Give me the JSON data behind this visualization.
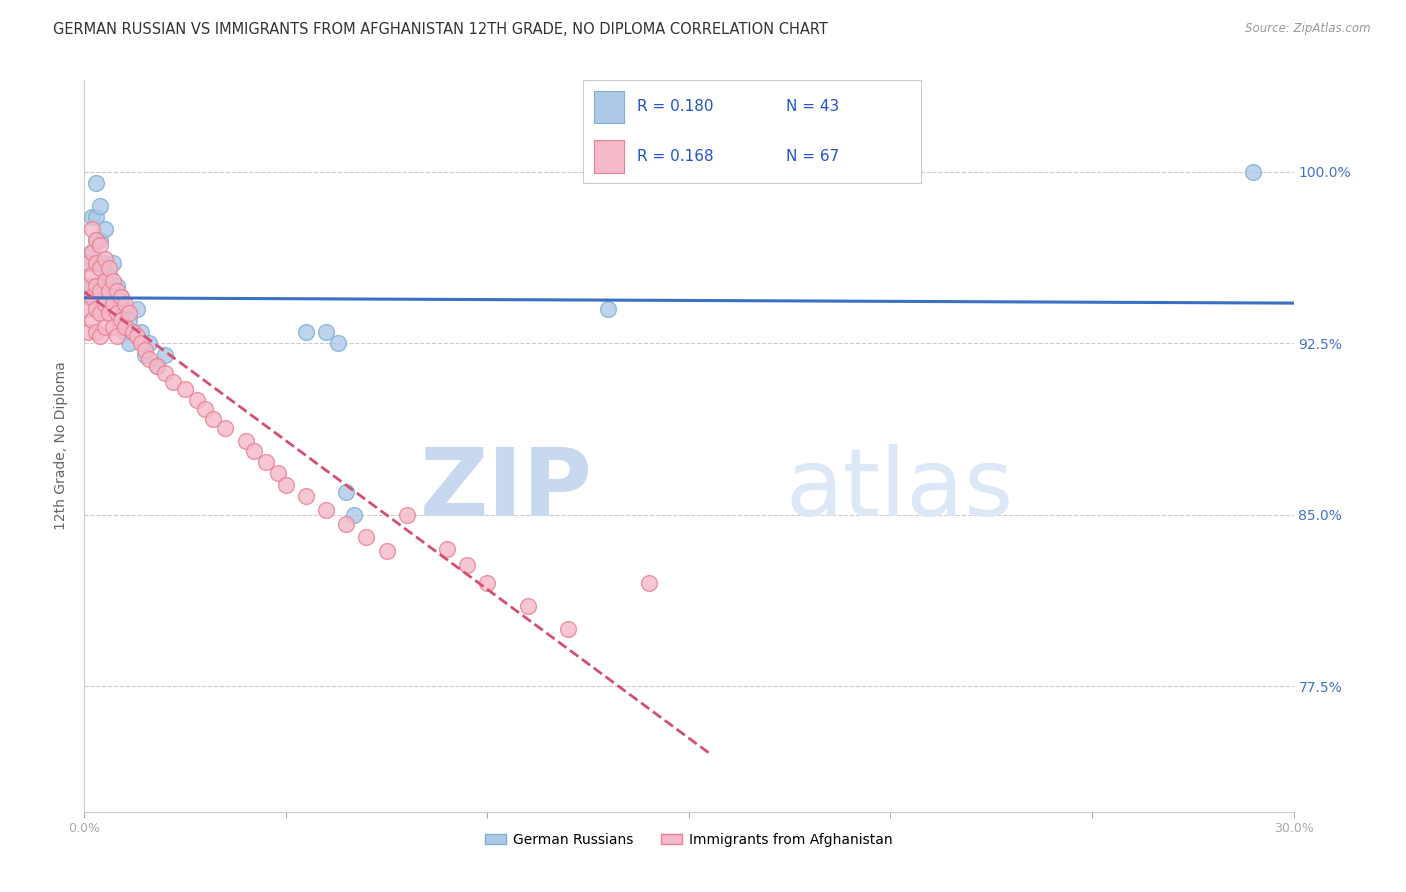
{
  "title": "GERMAN RUSSIAN VS IMMIGRANTS FROM AFGHANISTAN 12TH GRADE, NO DIPLOMA CORRELATION CHART",
  "source": "Source: ZipAtlas.com",
  "ylabel": "12th Grade, No Diploma",
  "y_ticks": [
    0.775,
    0.85,
    0.925,
    1.0
  ],
  "y_tick_labels": [
    "77.5%",
    "85.0%",
    "92.5%",
    "100.0%"
  ],
  "xlim": [
    0.0,
    0.3
  ],
  "ylim": [
    0.72,
    1.04
  ],
  "legend_label_blue": "German Russians",
  "legend_label_pink": "Immigrants from Afghanistan",
  "blue_color": "#aec8e8",
  "blue_edge": "#7aafd4",
  "pink_color": "#f5b8c8",
  "pink_edge": "#e88090",
  "blue_line_color": "#3a6fc4",
  "pink_line_color": "#d45070",
  "watermark_zip": "ZIP",
  "watermark_atlas": "atlas",
  "background_color": "#ffffff",
  "title_color": "#333333",
  "title_fontsize": 10.5,
  "tick_color_right": "#4472c4",
  "watermark_color": "#dde8f5",
  "blue_x": [
    0.001,
    0.001,
    0.002,
    0.002,
    0.002,
    0.003,
    0.003,
    0.003,
    0.003,
    0.004,
    0.004,
    0.004,
    0.004,
    0.005,
    0.005,
    0.005,
    0.006,
    0.006,
    0.007,
    0.007,
    0.007,
    0.008,
    0.008,
    0.009,
    0.009,
    0.01,
    0.01,
    0.011,
    0.011,
    0.012,
    0.013,
    0.014,
    0.015,
    0.016,
    0.018,
    0.02,
    0.055,
    0.06,
    0.063,
    0.065,
    0.067,
    0.13,
    0.29
  ],
  "blue_y": [
    0.96,
    0.945,
    0.98,
    0.965,
    0.95,
    0.995,
    0.98,
    0.97,
    0.96,
    0.985,
    0.97,
    0.96,
    0.95,
    0.975,
    0.96,
    0.95,
    0.955,
    0.945,
    0.96,
    0.95,
    0.94,
    0.95,
    0.94,
    0.945,
    0.935,
    0.94,
    0.93,
    0.935,
    0.925,
    0.93,
    0.94,
    0.93,
    0.92,
    0.925,
    0.915,
    0.92,
    0.93,
    0.93,
    0.925,
    0.86,
    0.85,
    0.94,
    1.0
  ],
  "pink_x": [
    0.001,
    0.001,
    0.001,
    0.001,
    0.002,
    0.002,
    0.002,
    0.002,
    0.002,
    0.003,
    0.003,
    0.003,
    0.003,
    0.003,
    0.004,
    0.004,
    0.004,
    0.004,
    0.004,
    0.005,
    0.005,
    0.005,
    0.005,
    0.006,
    0.006,
    0.006,
    0.007,
    0.007,
    0.007,
    0.008,
    0.008,
    0.008,
    0.009,
    0.009,
    0.01,
    0.01,
    0.011,
    0.012,
    0.013,
    0.014,
    0.015,
    0.016,
    0.018,
    0.02,
    0.022,
    0.025,
    0.028,
    0.03,
    0.032,
    0.035,
    0.04,
    0.042,
    0.045,
    0.048,
    0.05,
    0.055,
    0.06,
    0.065,
    0.07,
    0.075,
    0.08,
    0.09,
    0.095,
    0.1,
    0.11,
    0.12,
    0.14
  ],
  "pink_y": [
    0.96,
    0.95,
    0.94,
    0.93,
    0.975,
    0.965,
    0.955,
    0.945,
    0.935,
    0.97,
    0.96,
    0.95,
    0.94,
    0.93,
    0.968,
    0.958,
    0.948,
    0.938,
    0.928,
    0.962,
    0.952,
    0.942,
    0.932,
    0.958,
    0.948,
    0.938,
    0.952,
    0.942,
    0.932,
    0.948,
    0.938,
    0.928,
    0.945,
    0.935,
    0.942,
    0.932,
    0.938,
    0.93,
    0.928,
    0.925,
    0.922,
    0.918,
    0.915,
    0.912,
    0.908,
    0.905,
    0.9,
    0.896,
    0.892,
    0.888,
    0.882,
    0.878,
    0.873,
    0.868,
    0.863,
    0.858,
    0.852,
    0.846,
    0.84,
    0.834,
    0.85,
    0.835,
    0.828,
    0.82,
    0.81,
    0.8,
    0.82
  ]
}
